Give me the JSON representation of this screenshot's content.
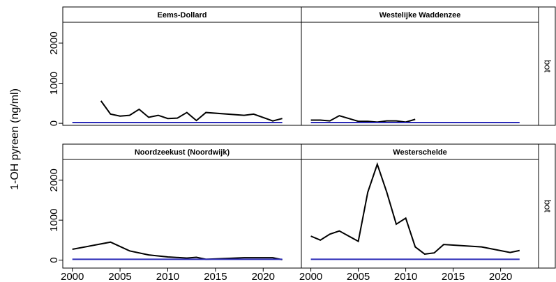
{
  "y_label": "1-OH pyreen (ng/ml)",
  "side_labels": [
    "bot",
    "bot"
  ],
  "chart_data": [
    {
      "type": "line",
      "title": "Eems-Dollard",
      "xlim": [
        1999,
        2024
      ],
      "ylim": [
        -50,
        2520
      ],
      "yticks": [
        0,
        1000,
        2000
      ],
      "series": [
        {
          "color": "#000000",
          "x": [
            2003,
            2004,
            2005,
            2006,
            2007,
            2008,
            2009,
            2010,
            2011,
            2012,
            2013,
            2014,
            2018,
            2019,
            2021,
            2022
          ],
          "values": [
            560,
            230,
            180,
            200,
            350,
            150,
            200,
            120,
            130,
            270,
            70,
            270,
            200,
            230,
            60,
            120
          ]
        },
        {
          "color": "#2b2bb8",
          "x": [
            2000,
            2022
          ],
          "values": [
            20,
            20
          ]
        }
      ]
    },
    {
      "type": "line",
      "title": "Westelijke Waddenzee",
      "xlim": [
        1999,
        2024
      ],
      "ylim": [
        -50,
        2520
      ],
      "series": [
        {
          "color": "#000000",
          "x": [
            2000,
            2001,
            2002,
            2003,
            2004,
            2005,
            2006,
            2007,
            2008,
            2009,
            2010,
            2011
          ],
          "values": [
            80,
            80,
            60,
            190,
            120,
            50,
            50,
            30,
            60,
            60,
            30,
            100
          ]
        },
        {
          "color": "#2b2bb8",
          "x": [
            2000,
            2022
          ],
          "values": [
            20,
            20
          ]
        }
      ]
    },
    {
      "type": "line",
      "title": "Noordzeekust  (Noordwijk)",
      "xlim": [
        1999,
        2024
      ],
      "ylim": [
        -200,
        2520
      ],
      "yticks": [
        0,
        1000,
        2000
      ],
      "xticks": [
        2000,
        2005,
        2010,
        2015,
        2020
      ],
      "series": [
        {
          "color": "#000000",
          "x": [
            2000,
            2004,
            2006,
            2008,
            2010,
            2012,
            2013,
            2014,
            2016,
            2018,
            2021,
            2022
          ],
          "values": [
            270,
            450,
            230,
            130,
            80,
            50,
            70,
            20,
            40,
            60,
            60,
            10
          ]
        },
        {
          "color": "#2b2bb8",
          "x": [
            2000,
            2022
          ],
          "values": [
            20,
            20
          ]
        }
      ]
    },
    {
      "type": "line",
      "title": "Westerschelde",
      "xlim": [
        1999,
        2024
      ],
      "ylim": [
        -200,
        2520
      ],
      "xticks": [
        2000,
        2005,
        2010,
        2015,
        2020
      ],
      "series": [
        {
          "color": "#000000",
          "x": [
            2000,
            2001,
            2002,
            2003,
            2005,
            2006,
            2007,
            2008,
            2009,
            2010,
            2011,
            2012,
            2013,
            2014,
            2018,
            2021,
            2022
          ],
          "values": [
            600,
            500,
            650,
            730,
            470,
            1700,
            2400,
            1700,
            900,
            1050,
            330,
            150,
            180,
            390,
            330,
            190,
            240
          ]
        },
        {
          "color": "#2b2bb8",
          "x": [
            2000,
            2022
          ],
          "values": [
            20,
            20
          ]
        }
      ]
    }
  ]
}
